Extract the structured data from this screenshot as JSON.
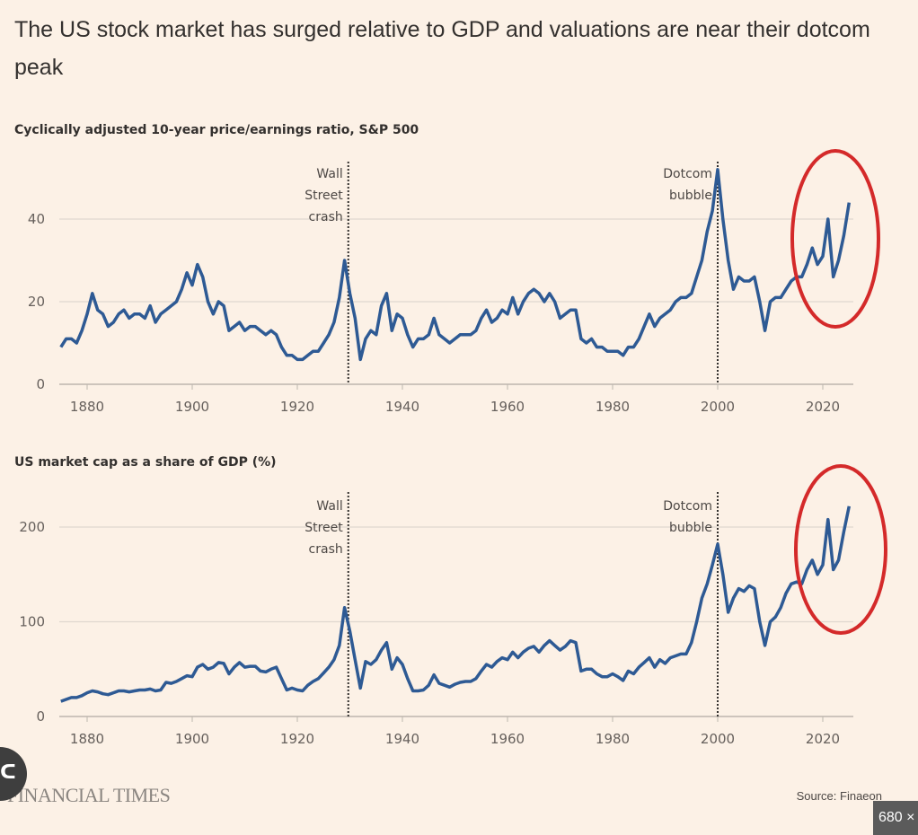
{
  "title": "The US stock market has surged relative to GDP and valuations are near their dotcom peak",
  "footer": {
    "logo": "FINANCIAL TIMES",
    "source": "Source: Finaeon"
  },
  "overlay": {
    "badge": "680 ×",
    "icon": "share-lens-icon"
  },
  "colors": {
    "background": "#fcf1e6",
    "line": "#2e5a94",
    "highlight": "#d42a2a",
    "grid": "#e0d8cf",
    "text": "#33302e"
  },
  "chart_data": [
    {
      "type": "line",
      "title": "Cyclically adjusted 10-year price/earnings ratio, S&P 500",
      "xlim": [
        1875,
        2025
      ],
      "ylim": [
        0,
        55
      ],
      "xticks": [
        "1880",
        "1900",
        "1920",
        "1940",
        "1960",
        "1980",
        "2000",
        "2020"
      ],
      "yticks": [
        "0",
        "20",
        "40"
      ],
      "grid": true,
      "annotations": [
        {
          "x": 1929.7,
          "label": [
            "Wall",
            "Street",
            "crash"
          ]
        },
        {
          "x": 2000,
          "label": [
            "Dotcom",
            "bubble"
          ]
        }
      ],
      "highlight": {
        "shape": "ellipse",
        "x_range": [
          2014,
          2028
        ]
      },
      "x": [
        1875,
        1876,
        1877,
        1878,
        1879,
        1880,
        1881,
        1882,
        1883,
        1884,
        1885,
        1886,
        1887,
        1888,
        1889,
        1890,
        1891,
        1892,
        1893,
        1894,
        1895,
        1896,
        1897,
        1898,
        1899,
        1900,
        1901,
        1902,
        1903,
        1904,
        1905,
        1906,
        1907,
        1908,
        1909,
        1910,
        1911,
        1912,
        1913,
        1914,
        1915,
        1916,
        1917,
        1918,
        1919,
        1920,
        1921,
        1922,
        1923,
        1924,
        1925,
        1926,
        1927,
        1928,
        1929,
        1930,
        1931,
        1932,
        1933,
        1934,
        1935,
        1936,
        1937,
        1938,
        1939,
        1940,
        1941,
        1942,
        1943,
        1944,
        1945,
        1946,
        1947,
        1948,
        1949,
        1950,
        1951,
        1952,
        1953,
        1954,
        1955,
        1956,
        1957,
        1958,
        1959,
        1960,
        1961,
        1962,
        1963,
        1964,
        1965,
        1966,
        1967,
        1968,
        1969,
        1970,
        1971,
        1972,
        1973,
        1974,
        1975,
        1976,
        1977,
        1978,
        1979,
        1980,
        1981,
        1982,
        1983,
        1984,
        1985,
        1986,
        1987,
        1988,
        1989,
        1990,
        1991,
        1992,
        1993,
        1994,
        1995,
        1996,
        1997,
        1998,
        1999,
        2000,
        2001,
        2002,
        2003,
        2004,
        2005,
        2006,
        2007,
        2008,
        2009,
        2010,
        2011,
        2012,
        2013,
        2014,
        2015,
        2016,
        2017,
        2018,
        2019,
        2020,
        2021,
        2022,
        2023,
        2024,
        2025
      ],
      "y": [
        9,
        11,
        11,
        10,
        13,
        17,
        22,
        18,
        17,
        14,
        15,
        17,
        18,
        16,
        17,
        17,
        16,
        19,
        15,
        17,
        18,
        19,
        20,
        23,
        27,
        24,
        29,
        26,
        20,
        17,
        20,
        19,
        13,
        14,
        15,
        13,
        14,
        14,
        13,
        12,
        13,
        12,
        9,
        7,
        7,
        6,
        6,
        7,
        8,
        8,
        10,
        12,
        15,
        21,
        30,
        22,
        16,
        6,
        11,
        13,
        12,
        19,
        22,
        13,
        17,
        16,
        12,
        9,
        11,
        11,
        12,
        16,
        12,
        11,
        10,
        11,
        12,
        12,
        12,
        13,
        16,
        18,
        15,
        16,
        18,
        17,
        21,
        17,
        20,
        22,
        23,
        22,
        20,
        22,
        20,
        16,
        17,
        18,
        18,
        11,
        10,
        11,
        9,
        9,
        8,
        8,
        8,
        7,
        9,
        9,
        11,
        14,
        17,
        14,
        16,
        17,
        18,
        20,
        21,
        21,
        22,
        26,
        30,
        37,
        42,
        52,
        40,
        30,
        23,
        26,
        25,
        25,
        26,
        20,
        13,
        20,
        21,
        21,
        23,
        25,
        26,
        26,
        29,
        33,
        29,
        31,
        40,
        26,
        30,
        36,
        44
      ]
    },
    {
      "type": "line",
      "title": "US market cap as a share of GDP (%)",
      "xlim": [
        1875,
        2025
      ],
      "ylim": [
        0,
        230
      ],
      "xticks": [
        "1880",
        "1900",
        "1920",
        "1940",
        "1960",
        "1980",
        "2000",
        "2020"
      ],
      "yticks": [
        "0",
        "100",
        "200"
      ],
      "grid": true,
      "annotations": [
        {
          "x": 1929.7,
          "label": [
            "Wall",
            "Street",
            "crash"
          ]
        },
        {
          "x": 2000,
          "label": [
            "Dotcom",
            "bubble"
          ]
        }
      ],
      "highlight": {
        "shape": "ellipse",
        "x_range": [
          2015,
          2029
        ]
      },
      "x": [
        1875,
        1876,
        1877,
        1878,
        1879,
        1880,
        1881,
        1882,
        1883,
        1884,
        1885,
        1886,
        1887,
        1888,
        1889,
        1890,
        1891,
        1892,
        1893,
        1894,
        1895,
        1896,
        1897,
        1898,
        1899,
        1900,
        1901,
        1902,
        1903,
        1904,
        1905,
        1906,
        1907,
        1908,
        1909,
        1910,
        1911,
        1912,
        1913,
        1914,
        1915,
        1916,
        1917,
        1918,
        1919,
        1920,
        1921,
        1922,
        1923,
        1924,
        1925,
        1926,
        1927,
        1928,
        1929,
        1930,
        1931,
        1932,
        1933,
        1934,
        1935,
        1936,
        1937,
        1938,
        1939,
        1940,
        1941,
        1942,
        1943,
        1944,
        1945,
        1946,
        1947,
        1948,
        1949,
        1950,
        1951,
        1952,
        1953,
        1954,
        1955,
        1956,
        1957,
        1958,
        1959,
        1960,
        1961,
        1962,
        1963,
        1964,
        1965,
        1966,
        1967,
        1968,
        1969,
        1970,
        1971,
        1972,
        1973,
        1974,
        1975,
        1976,
        1977,
        1978,
        1979,
        1980,
        1981,
        1982,
        1983,
        1984,
        1985,
        1986,
        1987,
        1988,
        1989,
        1990,
        1991,
        1992,
        1993,
        1994,
        1995,
        1996,
        1997,
        1998,
        1999,
        2000,
        2001,
        2002,
        2003,
        2004,
        2005,
        2006,
        2007,
        2008,
        2009,
        2010,
        2011,
        2012,
        2013,
        2014,
        2015,
        2016,
        2017,
        2018,
        2019,
        2020,
        2021,
        2022,
        2023,
        2024,
        2025
      ],
      "y": [
        16,
        18,
        20,
        20,
        22,
        25,
        27,
        26,
        24,
        23,
        25,
        27,
        27,
        26,
        27,
        28,
        28,
        29,
        27,
        28,
        36,
        35,
        37,
        40,
        43,
        42,
        52,
        55,
        50,
        52,
        57,
        56,
        45,
        52,
        57,
        52,
        53,
        53,
        48,
        47,
        50,
        52,
        40,
        28,
        30,
        28,
        27,
        33,
        37,
        40,
        46,
        52,
        60,
        75,
        115,
        90,
        60,
        30,
        58,
        55,
        60,
        70,
        78,
        50,
        62,
        55,
        40,
        27,
        27,
        28,
        33,
        44,
        35,
        33,
        31,
        34,
        36,
        37,
        37,
        40,
        48,
        55,
        52,
        58,
        62,
        60,
        68,
        62,
        68,
        72,
        74,
        68,
        75,
        80,
        75,
        70,
        74,
        80,
        78,
        48,
        50,
        50,
        45,
        42,
        42,
        45,
        42,
        38,
        48,
        45,
        52,
        57,
        62,
        52,
        60,
        56,
        62,
        64,
        66,
        66,
        78,
        100,
        125,
        140,
        160,
        182,
        150,
        110,
        125,
        135,
        132,
        138,
        135,
        100,
        75,
        100,
        105,
        115,
        130,
        140,
        142,
        140,
        155,
        165,
        150,
        160,
        208,
        155,
        165,
        195,
        222
      ]
    }
  ]
}
